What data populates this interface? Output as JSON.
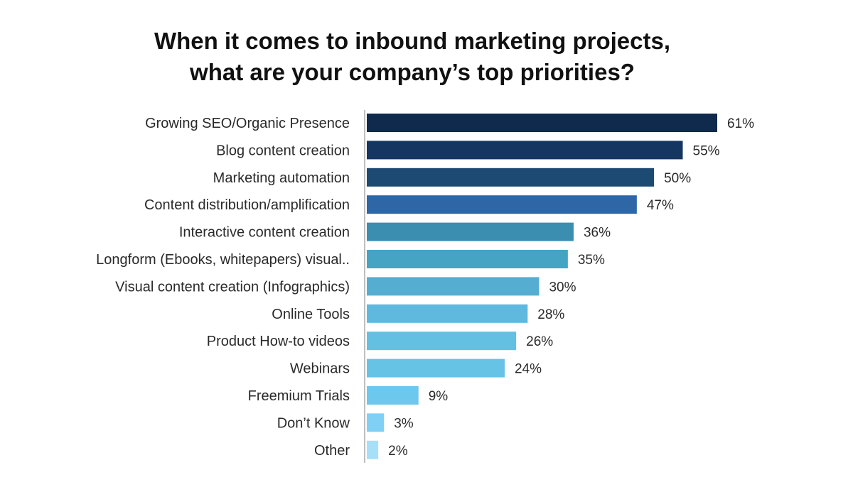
{
  "chart_data": {
    "type": "bar",
    "orientation": "horizontal",
    "title_lines": [
      "When it comes to inbound marketing projects,",
      "what are your company’s top priorities?"
    ],
    "xlabel": "",
    "ylabel": "",
    "xlim": [
      0,
      61
    ],
    "grid": false,
    "legend": "none",
    "categories": [
      "Growing SEO/Organic Presence",
      "Blog content creation",
      "Marketing automation",
      "Content distribution/amplification",
      "Interactive content creation",
      "Longform (Ebooks, whitepapers) visual..",
      "Visual content creation (Infographics)",
      "Online Tools",
      "Product How-to videos",
      "Webinars",
      "Freemium Trials",
      "Don’t Know",
      "Other"
    ],
    "values": [
      61,
      55,
      50,
      47,
      36,
      35,
      30,
      28,
      26,
      24,
      9,
      3,
      2
    ],
    "value_labels": [
      "61%",
      "55%",
      "50%",
      "47%",
      "36%",
      "35%",
      "30%",
      "28%",
      "26%",
      "24%",
      "9%",
      "3%",
      "2%"
    ],
    "bar_colors": [
      "#0f2a4d",
      "#143660",
      "#1c4a73",
      "#2e66a6",
      "#3b8eb0",
      "#45a4c4",
      "#55aed1",
      "#5fb9df",
      "#64c0e3",
      "#66c3e6",
      "#6cc8ec",
      "#7fd0f4",
      "#a6e0f8"
    ],
    "axis_color": "#bfbfbf"
  }
}
